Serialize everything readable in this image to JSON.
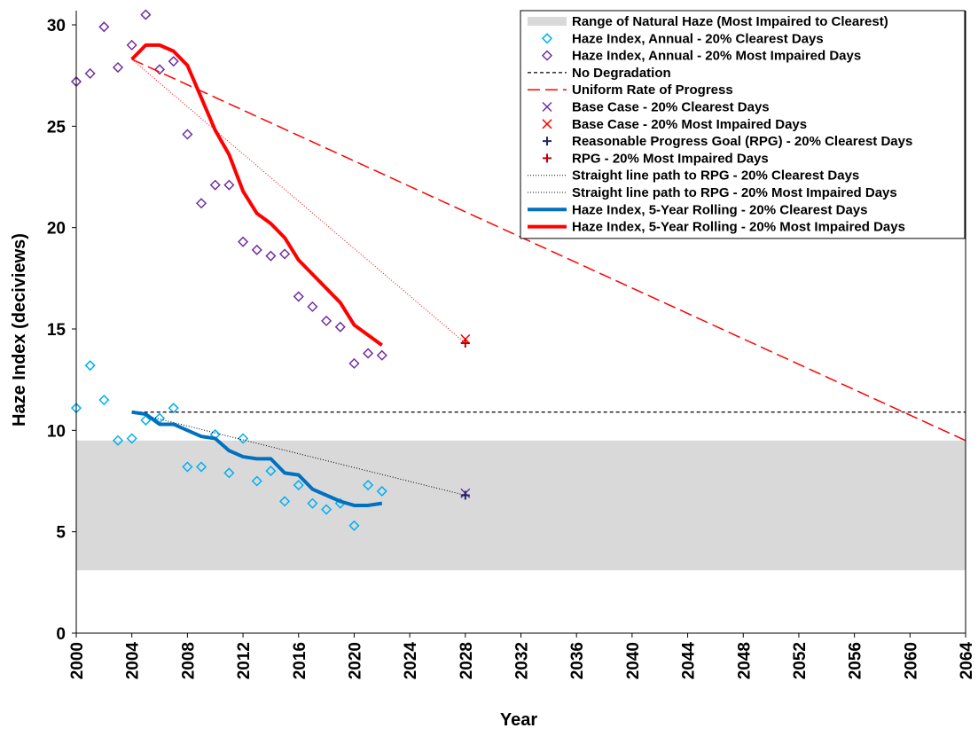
{
  "chart_data": {
    "type": "mixed",
    "x_label": "Year",
    "y_label": "Haze Index (deciviews)",
    "xlim": [
      2000,
      2064
    ],
    "xticks": [
      2000,
      2004,
      2008,
      2012,
      2016,
      2020,
      2024,
      2028,
      2032,
      2036,
      2040,
      2044,
      2048,
      2052,
      2056,
      2060,
      2064
    ],
    "ylim": [
      0,
      30.7
    ],
    "yticks": [
      0,
      5,
      10,
      15,
      20,
      25,
      30
    ],
    "legend": "upper right",
    "series": [
      {
        "name": "Range of Natural Haze (Most Impaired to Clearest)",
        "style": "band",
        "color": "#d9d9d9",
        "range": [
          3.1,
          9.5
        ]
      },
      {
        "name": "Haze Index, Annual - 20% Clearest Days",
        "style": "diamond",
        "color": "#00b0f0",
        "x": [
          2000,
          2001,
          2002,
          2003,
          2004,
          2005,
          2006,
          2007,
          2008,
          2009,
          2010,
          2011,
          2012,
          2013,
          2014,
          2015,
          2016,
          2017,
          2018,
          2019,
          2020,
          2021,
          2022
        ],
        "values": [
          11.1,
          13.2,
          11.5,
          9.5,
          9.6,
          10.5,
          10.6,
          11.1,
          8.2,
          8.2,
          9.8,
          7.9,
          9.6,
          7.5,
          8.0,
          6.5,
          7.3,
          6.4,
          6.1,
          6.4,
          5.3,
          7.3,
          7.0
        ]
      },
      {
        "name": "Haze Index, Annual - 20% Most Impaired Days",
        "style": "diamond",
        "color": "#7030a0",
        "x": [
          2000,
          2001,
          2002,
          2003,
          2004,
          2005,
          2006,
          2007,
          2008,
          2009,
          2010,
          2011,
          2012,
          2013,
          2014,
          2015,
          2016,
          2017,
          2018,
          2019,
          2020,
          2021,
          2022
        ],
        "values": [
          27.2,
          27.6,
          29.9,
          27.9,
          29.0,
          30.5,
          27.8,
          28.2,
          24.6,
          21.2,
          22.1,
          22.1,
          19.3,
          18.9,
          18.6,
          18.7,
          16.6,
          16.1,
          15.4,
          15.1,
          13.3,
          13.8,
          13.7
        ]
      },
      {
        "name": "No Degradation",
        "style": "line",
        "color": "#000000",
        "width": 1.3,
        "dash": "4,3",
        "x": [
          2004,
          2064
        ],
        "values": [
          10.9,
          10.9
        ]
      },
      {
        "name": "Uniform Rate of Progress",
        "style": "line",
        "color": "#ff0000",
        "width": 1.5,
        "dash": "14,6",
        "x": [
          2004,
          2064
        ],
        "values": [
          28.3,
          9.5
        ]
      },
      {
        "name": "Base Case - 20% Clearest Days",
        "style": "x",
        "color": "#7030a0",
        "x": [
          2028
        ],
        "values": [
          6.9
        ]
      },
      {
        "name": "Base Case - 20% Most Impaired Days",
        "style": "x",
        "color": "#ff0000",
        "x": [
          2028
        ],
        "values": [
          14.5
        ]
      },
      {
        "name": "Reasonable Progress Goal (RPG) - 20% Clearest Days",
        "style": "plus",
        "color": "#1f2a6b",
        "x": [
          2028
        ],
        "values": [
          6.8
        ]
      },
      {
        "name": "RPG - 20% Most Impaired Days",
        "style": "plus",
        "color": "#c00000",
        "x": [
          2028
        ],
        "values": [
          14.3
        ]
      },
      {
        "name": "Straight line path to RPG - 20% Clearest Days",
        "style": "line",
        "color": "#000000",
        "width": 1,
        "dash": "1,2",
        "x": [
          2004,
          2028
        ],
        "values": [
          10.9,
          6.8
        ]
      },
      {
        "name": "Straight line path to RPG - 20% Most Impaired Days",
        "style": "line",
        "color": "#ff0000",
        "width": 1,
        "dash": "1,2",
        "x": [
          2004,
          2028
        ],
        "values": [
          28.3,
          14.3
        ]
      },
      {
        "name": "Haze Index, 5-Year Rolling - 20% Clearest Days",
        "style": "line",
        "color": "#0070c0",
        "width": 4,
        "x": [
          2004,
          2005,
          2006,
          2007,
          2008,
          2009,
          2010,
          2011,
          2012,
          2013,
          2014,
          2015,
          2016,
          2017,
          2018,
          2019,
          2020,
          2021,
          2022
        ],
        "values": [
          10.9,
          10.8,
          10.3,
          10.3,
          10.0,
          9.7,
          9.6,
          9.0,
          8.7,
          8.6,
          8.6,
          7.9,
          7.8,
          7.1,
          6.8,
          6.5,
          6.3,
          6.3,
          6.4
        ]
      },
      {
        "name": "Haze Index, 5-Year Rolling - 20% Most Impaired Days",
        "style": "line",
        "color": "#ff0000",
        "width": 4,
        "x": [
          2004,
          2005,
          2006,
          2007,
          2008,
          2009,
          2010,
          2011,
          2012,
          2013,
          2014,
          2015,
          2016,
          2017,
          2018,
          2019,
          2020,
          2021,
          2022
        ],
        "values": [
          28.3,
          29.0,
          29.0,
          28.7,
          28.0,
          26.4,
          24.8,
          23.6,
          21.8,
          20.7,
          20.2,
          19.5,
          18.4,
          17.7,
          17.0,
          16.3,
          15.2,
          14.7,
          14.2
        ]
      }
    ]
  }
}
